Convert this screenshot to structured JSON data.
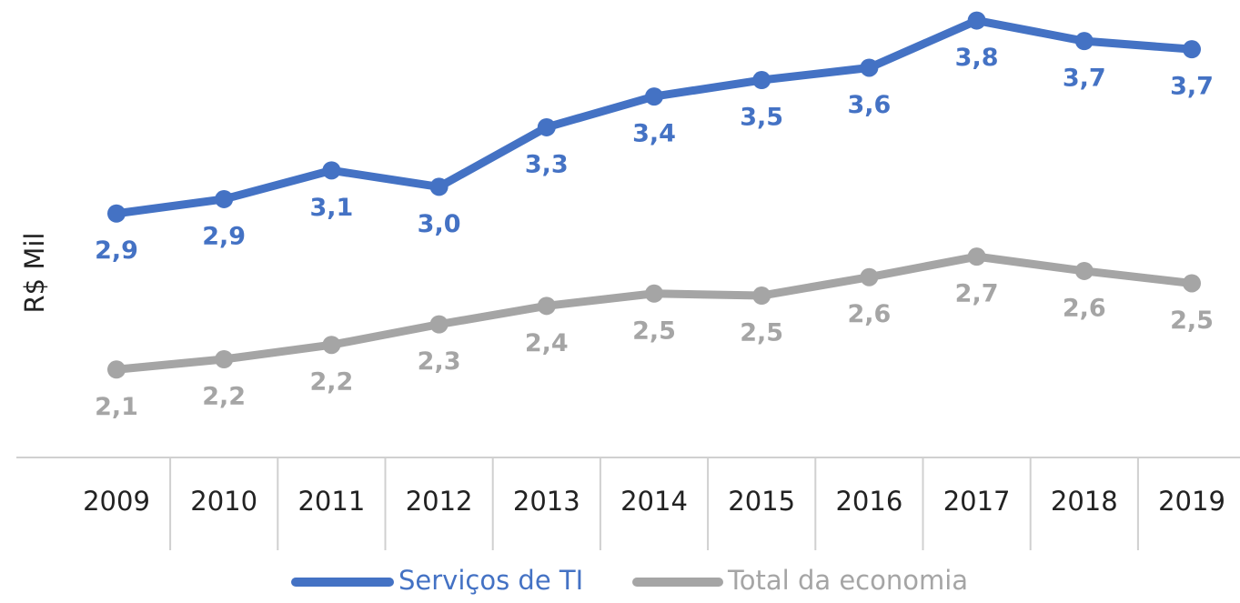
{
  "chart_data": {
    "type": "line",
    "y_label": "R$ Mil",
    "categories": [
      "2009",
      "2010",
      "2011",
      "2012",
      "2013",
      "2014",
      "2015",
      "2016",
      "2017",
      "2018",
      "2019"
    ],
    "series": [
      {
        "name": "Serviços de TI",
        "color": "#4472c4",
        "values": [
          2.86,
          2.93,
          3.07,
          2.99,
          3.28,
          3.43,
          3.51,
          3.57,
          3.8,
          3.7,
          3.66
        ],
        "value_labels": [
          "2,9",
          "2,9",
          "3,1",
          "3,0",
          "3,3",
          "3,4",
          "3,5",
          "3,6",
          "3,8",
          "3,7",
          "3,7"
        ]
      },
      {
        "name": "Total da economia",
        "color": "#a5a5a5",
        "values": [
          2.1,
          2.15,
          2.22,
          2.32,
          2.41,
          2.47,
          2.46,
          2.55,
          2.65,
          2.58,
          2.52
        ],
        "value_labels": [
          "2,1",
          "2,2",
          "2,2",
          "2,3",
          "2,4",
          "2,5",
          "2,5",
          "2,6",
          "2,7",
          "2,6",
          "2,5"
        ]
      }
    ],
    "ylim": [
      1.8,
      3.9
    ]
  }
}
